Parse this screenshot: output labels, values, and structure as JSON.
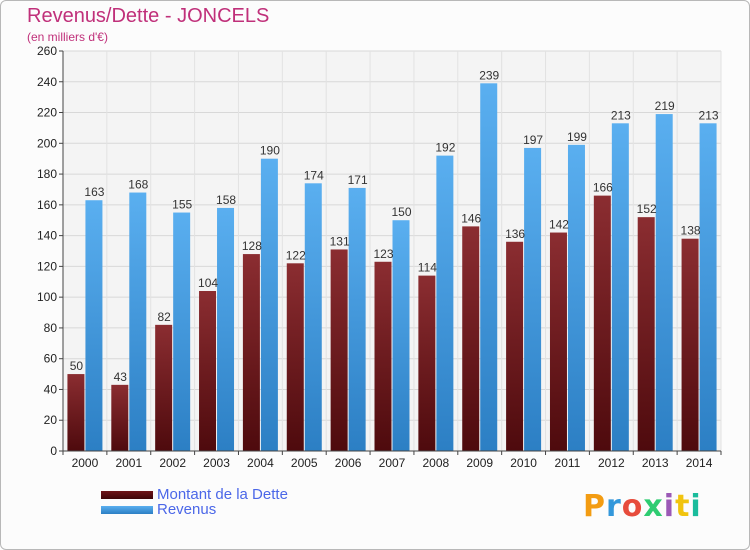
{
  "header": {
    "title": "Revenus/Dette - JONCELS",
    "subtitle": "(en milliers d'€)"
  },
  "chart_data": {
    "type": "bar",
    "title": "Revenus/Dette - JONCELS",
    "subtitle": "(en milliers d'€)",
    "categories": [
      "2000",
      "2001",
      "2002",
      "2003",
      "2004",
      "2005",
      "2006",
      "2007",
      "2008",
      "2009",
      "2010",
      "2011",
      "2012",
      "2013",
      "2014"
    ],
    "series": [
      {
        "name": "Montant de la Dette",
        "color": "#7a1f24",
        "values": [
          50,
          43,
          82,
          104,
          128,
          122,
          131,
          123,
          114,
          146,
          136,
          142,
          166,
          152,
          138
        ]
      },
      {
        "name": "Revenus",
        "color": "#3d98e0",
        "values": [
          163,
          168,
          155,
          158,
          190,
          174,
          171,
          150,
          192,
          239,
          197,
          199,
          213,
          219,
          213
        ]
      }
    ],
    "ylim": [
      0,
      260
    ],
    "ytick_step": 20,
    "grid": true,
    "legend": "bottom-left"
  },
  "logo": {
    "letters": [
      "P",
      "r",
      "o",
      "x",
      "i",
      "t",
      "i"
    ],
    "colors": [
      "#f39c12",
      "#3498db",
      "#e74c3c",
      "#2ecc71",
      "#9b59b6",
      "#f1c40f",
      "#1abc9c"
    ]
  }
}
